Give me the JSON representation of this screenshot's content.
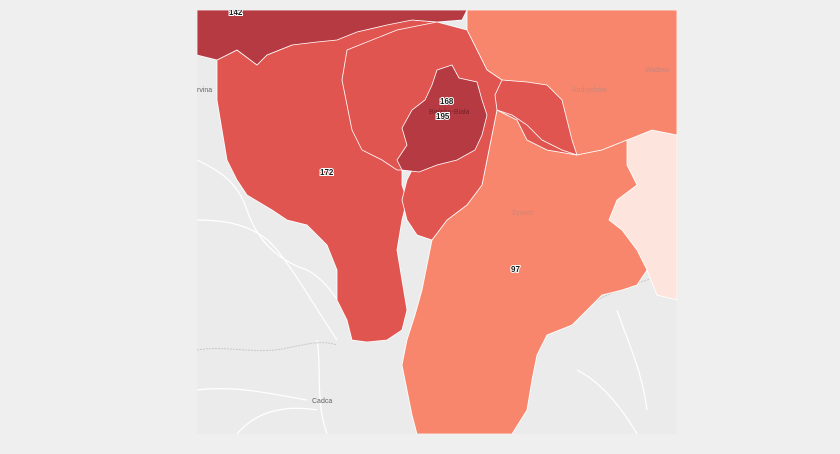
{
  "map": {
    "place_labels": {
      "karvina": "rvina",
      "cadca": "Cadca",
      "zywiec": "Żywiec",
      "andrychow": "Andrychów",
      "wadowice": "Wadowi",
      "bielsko": "Bielsko-Biała"
    },
    "region_values": {
      "north_top": "142",
      "bielsko_city_a": "168",
      "bielsko_city_b": "195",
      "cieszyn_powiat": "172",
      "zywiec_powiat": "97"
    },
    "colors": {
      "darkest": "#b63a42",
      "dark": "#e15550",
      "medium": "#f8866d",
      "light": "#fde4dc",
      "basemap": "#ebebeb",
      "roads": "#ffffff"
    }
  }
}
